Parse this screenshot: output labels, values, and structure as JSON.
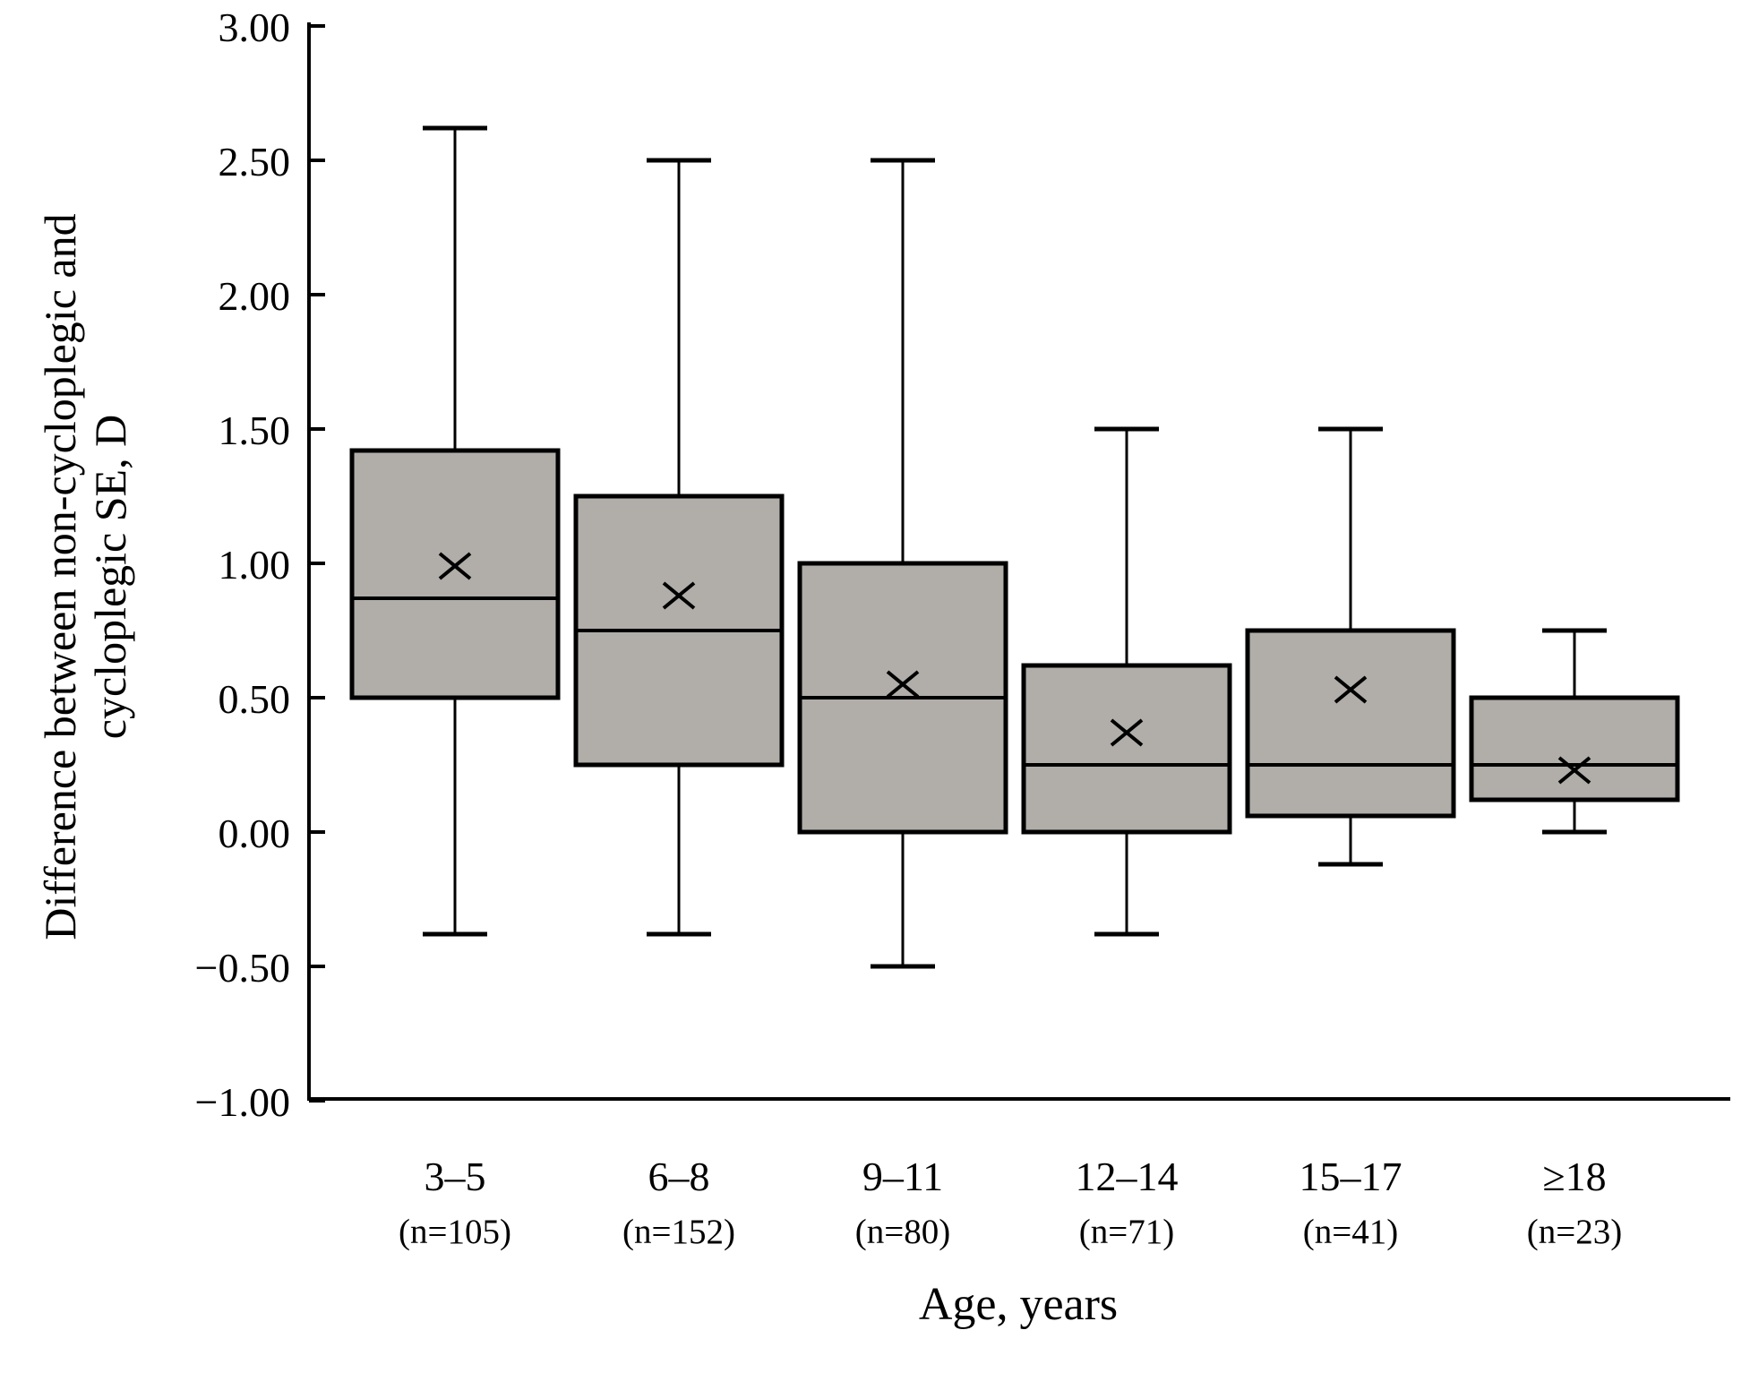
{
  "figure": {
    "background": "#ffffff",
    "box_fill": "#b1ada9",
    "line_color": "#000000"
  },
  "y_axis": {
    "title_line1": "Difference between non-cycloplegic and",
    "title_line2": "cycloplegic SE, D",
    "tick_labels": [
      "3.00",
      "2.50",
      "2.00",
      "1.50",
      "1.00",
      "0.50",
      "0.00",
      "−0.50",
      "−1.00"
    ],
    "tick_values": [
      3.0,
      2.5,
      2.0,
      1.5,
      1.0,
      0.5,
      0.0,
      -0.5,
      -1.0
    ]
  },
  "x_axis": {
    "title": "Age, years"
  },
  "chart_data": {
    "type": "boxplot",
    "title": "",
    "xlabel": "Age, years",
    "ylabel": "Difference between non-cycloplegic and cycloplegic SE, D",
    "ylim": [
      -1.0,
      3.0
    ],
    "grid": false,
    "legend": "none",
    "categories": [
      "3–5",
      "6–8",
      "9–11",
      "12–14",
      "15–17",
      "≥18"
    ],
    "groups": [
      {
        "label": "3–5",
        "n_label": "(n=105)",
        "n": 105,
        "whisker_low": -0.38,
        "q1": 0.5,
        "median": 0.87,
        "mean": 0.99,
        "q3": 1.42,
        "whisker_high": 2.62
      },
      {
        "label": "6–8",
        "n_label": "(n=152)",
        "n": 152,
        "whisker_low": -0.38,
        "q1": 0.25,
        "median": 0.75,
        "mean": 0.88,
        "q3": 1.25,
        "whisker_high": 2.5
      },
      {
        "label": "9–11",
        "n_label": "(n=80)",
        "n": 80,
        "whisker_low": -0.5,
        "q1": 0.0,
        "median": 0.5,
        "mean": 0.55,
        "q3": 1.0,
        "whisker_high": 2.5
      },
      {
        "label": "12–14",
        "n_label": "(n=71)",
        "n": 71,
        "whisker_low": -0.38,
        "q1": 0.0,
        "median": 0.25,
        "mean": 0.37,
        "q3": 0.62,
        "whisker_high": 1.5
      },
      {
        "label": "15–17",
        "n_label": "(n=41)",
        "n": 41,
        "whisker_low": -0.12,
        "q1": 0.06,
        "median": 0.25,
        "mean": 0.53,
        "q3": 0.75,
        "whisker_high": 1.5
      },
      {
        "label": "≥18",
        "n_label": "(n=23)",
        "n": 23,
        "whisker_low": 0.0,
        "q1": 0.12,
        "median": 0.25,
        "mean": 0.23,
        "q3": 0.5,
        "whisker_high": 0.75
      }
    ]
  }
}
